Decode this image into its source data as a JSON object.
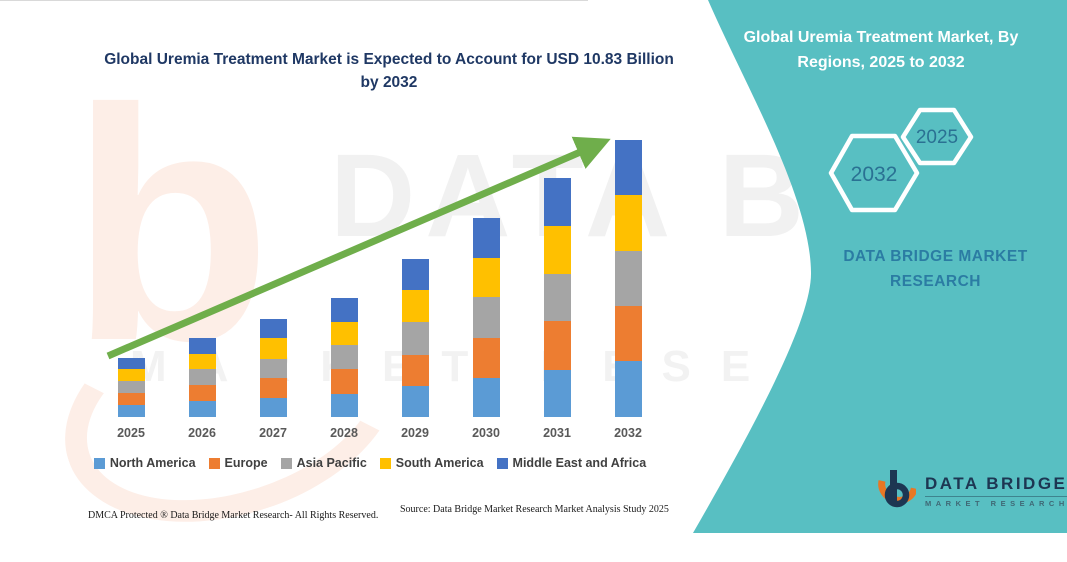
{
  "chart": {
    "title": "Global Uremia Treatment Market is Expected to Account for USD 10.83 Billion by 2032",
    "footer_dmca": "DMCA Protected ® Data Bridge Market Research-  All Rights Reserved.",
    "footer_source": "Source: Data Bridge Market Research  Market Analysis Study 2025"
  },
  "chart_data": {
    "type": "bar",
    "stacked": true,
    "title": "Global Uremia Treatment Market is Expected to Account for USD 10.83 Billion by 2032",
    "unit": "USD Billion",
    "categories": [
      "2025",
      "2026",
      "2027",
      "2028",
      "2029",
      "2030",
      "2031",
      "2032"
    ],
    "series": [
      {
        "name": "North America",
        "color": "#5B9BD5",
        "values": [
          0.48,
          0.62,
          0.75,
          0.92,
          1.21,
          1.53,
          1.85,
          2.21
        ]
      },
      {
        "name": "Europe",
        "color": "#ED7D31",
        "values": [
          0.47,
          0.63,
          0.78,
          0.97,
          1.23,
          1.58,
          1.91,
          2.12
        ]
      },
      {
        "name": "Asia Pacific",
        "color": "#A5A5A5",
        "values": [
          0.45,
          0.61,
          0.74,
          0.93,
          1.27,
          1.58,
          1.84,
          2.17
        ]
      },
      {
        "name": "South America",
        "color": "#FFC000",
        "values": [
          0.46,
          0.62,
          0.8,
          0.9,
          1.26,
          1.54,
          1.88,
          2.2
        ]
      },
      {
        "name": "Middle East and Africa",
        "color": "#4472C4",
        "values": [
          0.46,
          0.62,
          0.77,
          0.95,
          1.21,
          1.56,
          1.86,
          2.13
        ]
      }
    ],
    "totals": [
      2.32,
      3.1,
      3.84,
      4.67,
      6.18,
      7.79,
      9.34,
      10.83
    ],
    "ylim": [
      0,
      11
    ],
    "grid": false,
    "legend_position": "bottom",
    "annotations": [
      "green upward trend arrow from 2025 to 2032"
    ]
  },
  "side_panel": {
    "title": "Global Uremia Treatment Market, By Regions, 2025 to 2032",
    "panel_color": "#58BFC2",
    "hexagons": [
      {
        "label": "2032"
      },
      {
        "label": "2025"
      }
    ],
    "brand_text": "DATA BRIDGE MARKET RESEARCH",
    "logo": {
      "name": "DATA BRIDGE",
      "subtitle": "MARKET RESEARCH"
    }
  },
  "style": {
    "arrow_color": "#6FAE4B",
    "title_color": "#1F3864"
  },
  "watermarks": {
    "big_text": "DATA BRIDGE",
    "row_text": "MARKET RESEARCH",
    "logo_letter": "b"
  }
}
